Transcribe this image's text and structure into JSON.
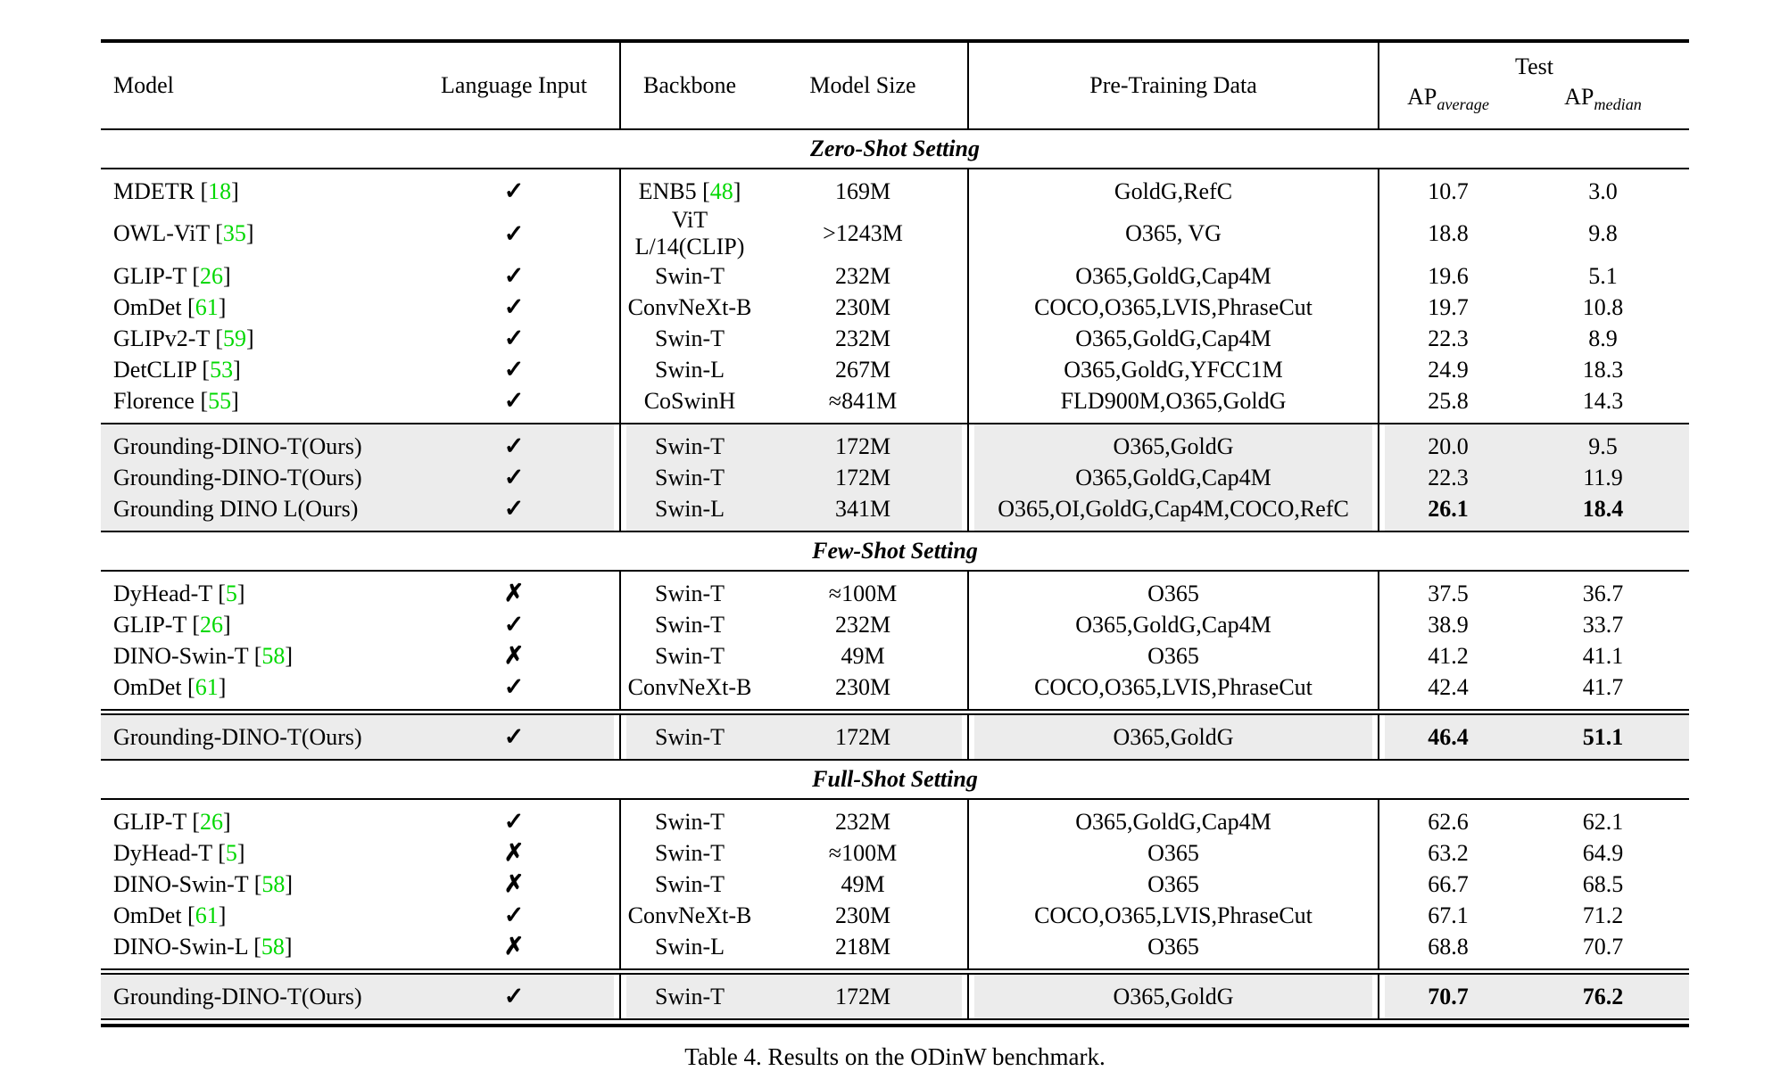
{
  "page": {
    "caption": "Table 4. Results on the ODinW benchmark."
  },
  "header": {
    "model": "Model",
    "language_input": "Language Input",
    "backbone": "Backbone",
    "model_size": "Model Size",
    "pretraining_data": "Pre-Training Data",
    "test_group": "Test",
    "ap_prefix": "AP",
    "ap_average_sub": "average",
    "ap_median_sub": "median"
  },
  "language_input_glyphs": {
    "yes": "✓",
    "no": "✗"
  },
  "colors": {
    "citation_green": "#00d800",
    "ours_row_bg": "#ececec"
  },
  "sections": [
    {
      "title": "Zero-Shot Setting",
      "ours_rule": "single",
      "rows": [
        {
          "model": "MDETR",
          "cite": "18",
          "lang": "yes",
          "backbone": "ENB5",
          "backbone_cite": "48",
          "size": "169M",
          "pretrain": "GoldG,RefC",
          "ap_avg": "10.7",
          "ap_med": "3.0",
          "ours": false,
          "bold_ap": false
        },
        {
          "model": "OWL-ViT",
          "cite": "35",
          "lang": "yes",
          "backbone": "ViT L/14(CLIP)",
          "size": ">1243M",
          "pretrain": "O365, VG",
          "ap_avg": "18.8",
          "ap_med": "9.8",
          "ours": false,
          "bold_ap": false
        },
        {
          "model": "GLIP-T",
          "cite": "26",
          "lang": "yes",
          "backbone": "Swin-T",
          "size": "232M",
          "pretrain": "O365,GoldG,Cap4M",
          "ap_avg": "19.6",
          "ap_med": "5.1",
          "ours": false,
          "bold_ap": false
        },
        {
          "model": "OmDet",
          "cite": "61",
          "lang": "yes",
          "backbone": "ConvNeXt-B",
          "size": "230M",
          "pretrain": "COCO,O365,LVIS,PhraseCut",
          "ap_avg": "19.7",
          "ap_med": "10.8",
          "ours": false,
          "bold_ap": false
        },
        {
          "model": "GLIPv2-T",
          "cite": "59",
          "lang": "yes",
          "backbone": "Swin-T",
          "size": "232M",
          "pretrain": "O365,GoldG,Cap4M",
          "ap_avg": "22.3",
          "ap_med": "8.9",
          "ours": false,
          "bold_ap": false
        },
        {
          "model": "DetCLIP",
          "cite": "53",
          "lang": "yes",
          "backbone": "Swin-L",
          "size": "267M",
          "pretrain": "O365,GoldG,YFCC1M",
          "ap_avg": "24.9",
          "ap_med": "18.3",
          "ours": false,
          "bold_ap": false
        },
        {
          "model": "Florence",
          "cite": "55",
          "lang": "yes",
          "backbone": "CoSwinH",
          "size": "≈841M",
          "pretrain": "FLD900M,O365,GoldG",
          "ap_avg": "25.8",
          "ap_med": "14.3",
          "ours": false,
          "bold_ap": false
        },
        {
          "model": "Grounding-DINO-T(Ours)",
          "lang": "yes",
          "backbone": "Swin-T",
          "size": "172M",
          "pretrain": "O365,GoldG",
          "ap_avg": "20.0",
          "ap_med": "9.5",
          "ours": true,
          "bold_ap": false
        },
        {
          "model": "Grounding-DINO-T(Ours)",
          "lang": "yes",
          "backbone": "Swin-T",
          "size": "172M",
          "pretrain": "O365,GoldG,Cap4M",
          "ap_avg": "22.3",
          "ap_med": "11.9",
          "ours": true,
          "bold_ap": false
        },
        {
          "model": "Grounding DINO L(Ours)",
          "lang": "yes",
          "backbone": "Swin-L",
          "size": "341M",
          "pretrain": "O365,OI,GoldG,Cap4M,COCO,RefC",
          "ap_avg": "26.1",
          "ap_med": "18.4",
          "ours": true,
          "bold_ap": true
        }
      ]
    },
    {
      "title": "Few-Shot Setting",
      "ours_rule": "double",
      "rows": [
        {
          "model": "DyHead-T",
          "cite": "5",
          "lang": "no",
          "backbone": "Swin-T",
          "size": "≈100M",
          "pretrain": "O365",
          "ap_avg": "37.5",
          "ap_med": "36.7",
          "ours": false,
          "bold_ap": false
        },
        {
          "model": "GLIP-T",
          "cite": "26",
          "lang": "yes",
          "backbone": "Swin-T",
          "size": "232M",
          "pretrain": "O365,GoldG,Cap4M",
          "ap_avg": "38.9",
          "ap_med": "33.7",
          "ours": false,
          "bold_ap": false
        },
        {
          "model": "DINO-Swin-T",
          "cite": "58",
          "lang": "no",
          "backbone": "Swin-T",
          "size": "49M",
          "pretrain": "O365",
          "ap_avg": "41.2",
          "ap_med": "41.1",
          "ours": false,
          "bold_ap": false
        },
        {
          "model": "OmDet",
          "cite": "61",
          "lang": "yes",
          "backbone": "ConvNeXt-B",
          "size": "230M",
          "pretrain": "COCO,O365,LVIS,PhraseCut",
          "ap_avg": "42.4",
          "ap_med": "41.7",
          "ours": false,
          "bold_ap": false
        },
        {
          "model": "Grounding-DINO-T(Ours)",
          "lang": "yes",
          "backbone": "Swin-T",
          "size": "172M",
          "pretrain": "O365,GoldG",
          "ap_avg": "46.4",
          "ap_med": "51.1",
          "ours": true,
          "bold_ap": true
        }
      ]
    },
    {
      "title": "Full-Shot Setting",
      "ours_rule": "double",
      "rows": [
        {
          "model": "GLIP-T",
          "cite": "26",
          "lang": "yes",
          "backbone": "Swin-T",
          "size": "232M",
          "pretrain": "O365,GoldG,Cap4M",
          "ap_avg": "62.6",
          "ap_med": "62.1",
          "ours": false,
          "bold_ap": false
        },
        {
          "model": "DyHead-T",
          "cite": "5",
          "lang": "no",
          "backbone": "Swin-T",
          "size": "≈100M",
          "pretrain": "O365",
          "ap_avg": "63.2",
          "ap_med": "64.9",
          "ours": false,
          "bold_ap": false
        },
        {
          "model": "DINO-Swin-T",
          "cite": "58",
          "lang": "no",
          "backbone": "Swin-T",
          "size": "49M",
          "pretrain": "O365",
          "ap_avg": "66.7",
          "ap_med": "68.5",
          "ours": false,
          "bold_ap": false
        },
        {
          "model": "OmDet",
          "cite": "61",
          "lang": "yes",
          "backbone": "ConvNeXt-B",
          "size": "230M",
          "pretrain": "COCO,O365,LVIS,PhraseCut",
          "ap_avg": "67.1",
          "ap_med": "71.2",
          "ours": false,
          "bold_ap": false
        },
        {
          "model": "DINO-Swin-L",
          "cite": "58",
          "lang": "no",
          "backbone": "Swin-L",
          "size": "218M",
          "pretrain": "O365",
          "ap_avg": "68.8",
          "ap_med": "70.7",
          "ours": false,
          "bold_ap": false
        },
        {
          "model": "Grounding-DINO-T(Ours)",
          "lang": "yes",
          "backbone": "Swin-T",
          "size": "172M",
          "pretrain": "O365,GoldG",
          "ap_avg": "70.7",
          "ap_med": "76.2",
          "ours": true,
          "bold_ap": true
        }
      ]
    }
  ]
}
